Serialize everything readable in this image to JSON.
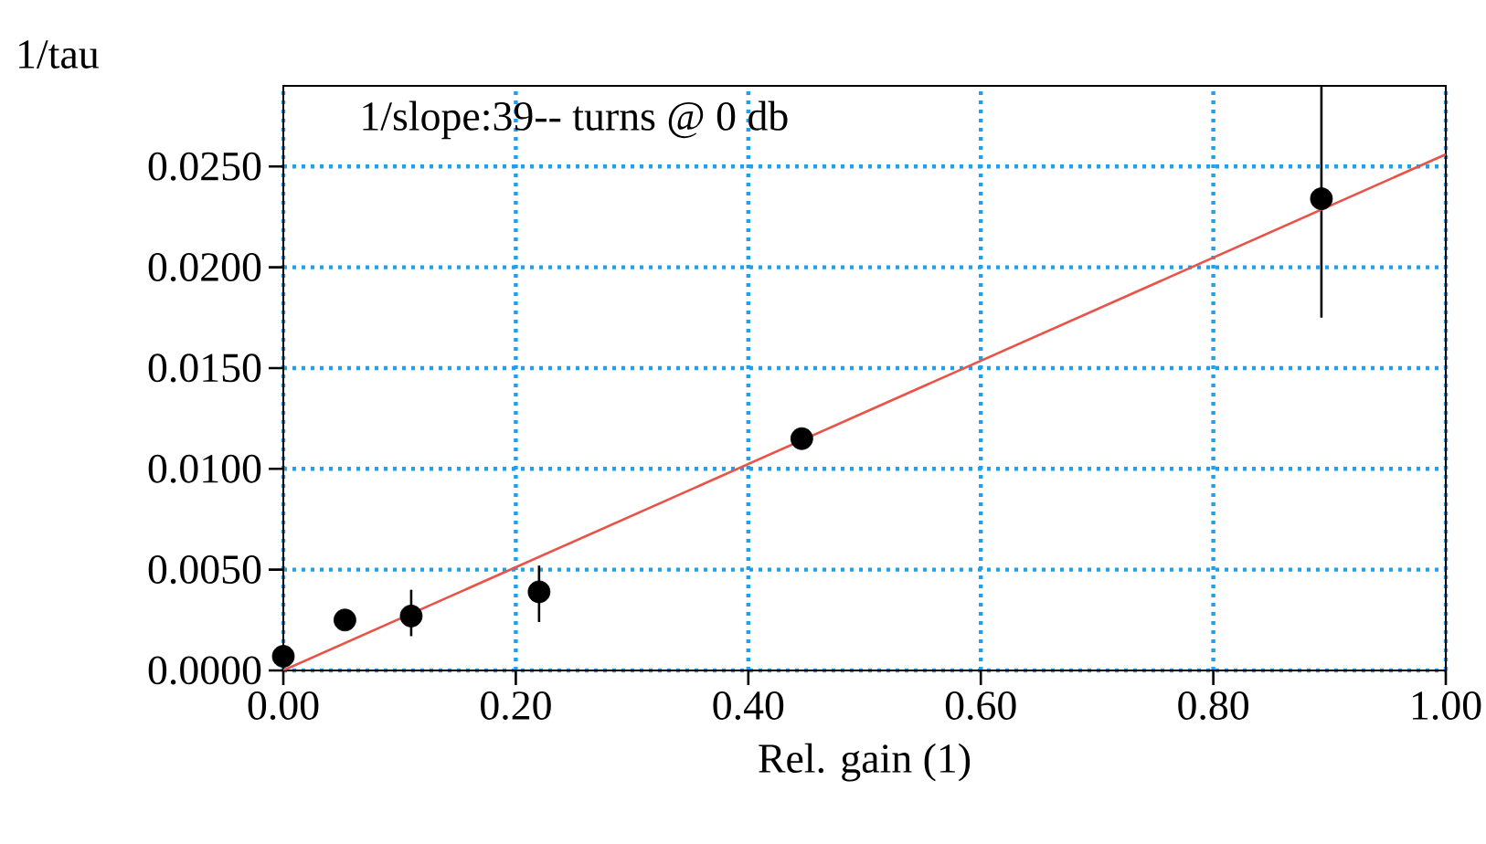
{
  "chart_data": {
    "type": "scatter",
    "xlabel": "Rel. gain (1)",
    "ylabel": "1/tau",
    "annotations": [
      "1/slope:39-- turns @ 0 db"
    ],
    "series": [
      {
        "color": "#000000",
        "marker": "circle",
        "x": [
          0.0,
          0.053,
          0.11,
          0.22,
          0.446,
          0.893
        ],
        "values": [
          0.0007,
          0.0025,
          0.0027,
          0.0039,
          0.0115,
          0.0234
        ],
        "errors": [
          null,
          null,
          [
            0.0017,
            0.004
          ],
          [
            0.0024,
            0.0052
          ],
          null,
          [
            0.0175,
            0.029
          ]
        ]
      },
      {
        "type": "line",
        "color": "#e8534a",
        "line_style": "solid",
        "x": [
          0.0,
          1.0
        ],
        "values": [
          0.0,
          0.0256
        ]
      }
    ],
    "xlim": [
      0.0,
      1.0
    ],
    "ylim": [
      0.0,
      0.029
    ],
    "xticks": [
      {
        "value": 0.0,
        "label": "0.00"
      },
      {
        "value": 0.2,
        "label": "0.20"
      },
      {
        "value": 0.4,
        "label": "0.40"
      },
      {
        "value": 0.6,
        "label": "0.60"
      },
      {
        "value": 0.8,
        "label": "0.80"
      },
      {
        "value": 1.0,
        "label": "1.00"
      }
    ],
    "yticks": [
      {
        "value": 0.0,
        "label": "0.0000"
      },
      {
        "value": 0.005,
        "label": "0.0050"
      },
      {
        "value": 0.01,
        "label": "0.0100"
      },
      {
        "value": 0.015,
        "label": "0.0150"
      },
      {
        "value": 0.02,
        "label": "0.0200"
      },
      {
        "value": 0.025,
        "label": "0.0250"
      }
    ],
    "grid": true
  }
}
